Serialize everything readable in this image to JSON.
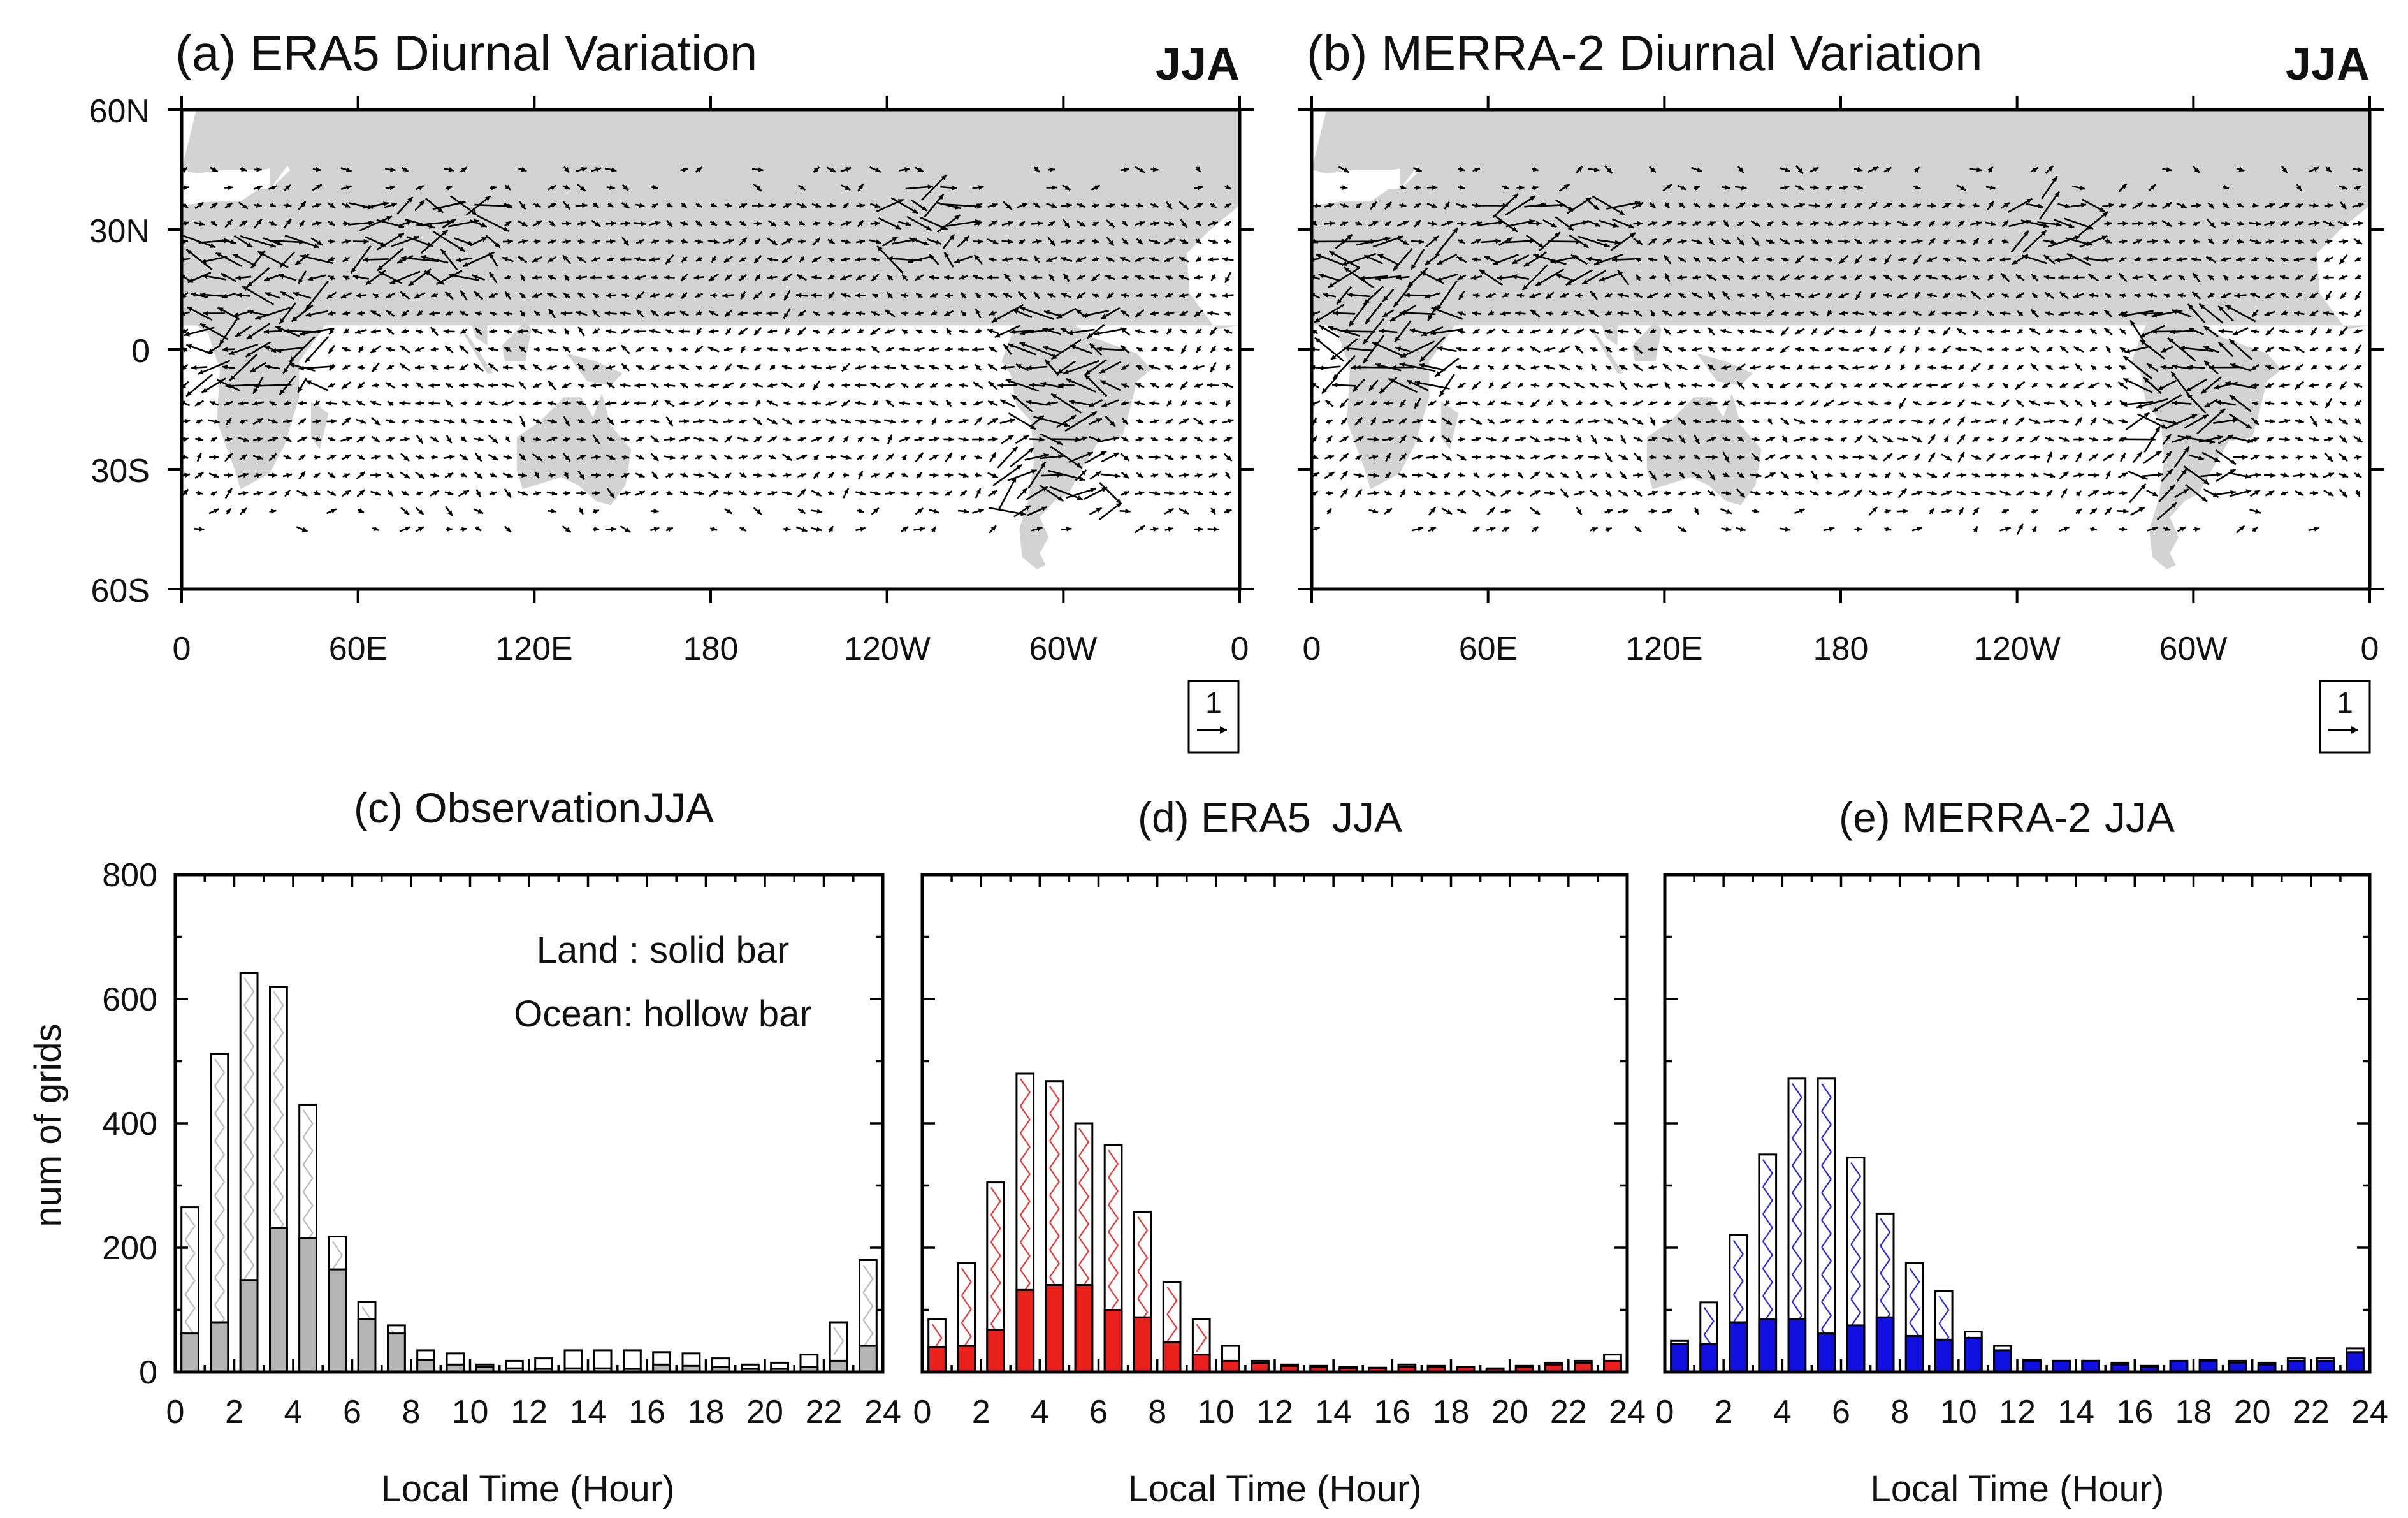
{
  "chart_data": [
    {
      "type": "map",
      "panel": "a",
      "title": "(a) ERA5 Diurnal Variation",
      "season": "JJA",
      "lat_ticks": [
        "60N",
        "30N",
        "0",
        "30S",
        "60S"
      ],
      "lon_ticks": [
        "0",
        "60E",
        "120E",
        "180",
        "120W",
        "60W",
        "0"
      ],
      "ref_vector": "1",
      "land_color": "#d3d3d3"
    },
    {
      "type": "map",
      "panel": "b",
      "title": "(b) MERRA-2 Diurnal Variation",
      "season": "JJA",
      "lat_ticks": [
        "60N",
        "30N",
        "0",
        "30S",
        "60S"
      ],
      "lon_ticks": [
        "0",
        "60E",
        "120E",
        "180",
        "120W",
        "60W",
        "0"
      ],
      "ref_vector": "1",
      "land_color": "#d3d3d3"
    },
    {
      "type": "bar",
      "panel": "c",
      "title": "(c) Observation",
      "season": "JJA",
      "xlabel": "Local Time (Hour)",
      "ylabel": "num of grids",
      "xlim": [
        0,
        24
      ],
      "ylim": [
        0,
        800
      ],
      "x_ticks": [
        "0",
        "2",
        "4",
        "6",
        "8",
        "10",
        "12",
        "14",
        "16",
        "18",
        "20",
        "22",
        "24"
      ],
      "y_ticks": [
        "0",
        "200",
        "400",
        "600",
        "800"
      ],
      "legend": [
        "Land : solid bar",
        "Ocean: hollow bar"
      ],
      "color": "#b4b4b4",
      "x": [
        0.5,
        1.5,
        2.5,
        3.5,
        4.5,
        5.5,
        6.5,
        7.5,
        8.5,
        9.5,
        10.5,
        11.5,
        12.5,
        13.5,
        14.5,
        15.5,
        16.5,
        17.5,
        18.5,
        19.5,
        20.5,
        21.5,
        22.5,
        23.5
      ],
      "series": [
        {
          "name": "Land",
          "values": [
            62,
            80,
            148,
            232,
            215,
            165,
            85,
            62,
            20,
            12,
            8,
            6,
            5,
            6,
            6,
            5,
            12,
            10,
            8,
            5,
            5,
            8,
            18,
            42
          ]
        },
        {
          "name": "Ocean",
          "values": [
            265,
            512,
            642,
            620,
            430,
            218,
            113,
            75,
            35,
            30,
            12,
            18,
            22,
            35,
            35,
            35,
            32,
            30,
            22,
            12,
            15,
            28,
            80,
            180
          ]
        }
      ]
    },
    {
      "type": "bar",
      "panel": "d",
      "title": "(d) ERA5",
      "season": "JJA",
      "xlabel": "Local Time (Hour)",
      "xlim": [
        0,
        24
      ],
      "ylim": [
        0,
        800
      ],
      "x_ticks": [
        "0",
        "2",
        "4",
        "6",
        "8",
        "10",
        "12",
        "14",
        "16",
        "18",
        "20",
        "22",
        "24"
      ],
      "color": "#e8211c",
      "x": [
        0.5,
        1.5,
        2.5,
        3.5,
        4.5,
        5.5,
        6.5,
        7.5,
        8.5,
        9.5,
        10.5,
        11.5,
        12.5,
        13.5,
        14.5,
        15.5,
        16.5,
        17.5,
        18.5,
        19.5,
        20.5,
        21.5,
        22.5,
        23.5
      ],
      "series": [
        {
          "name": "Land",
          "values": [
            40,
            42,
            68,
            132,
            140,
            140,
            100,
            88,
            48,
            28,
            18,
            14,
            10,
            8,
            6,
            6,
            8,
            8,
            8,
            5,
            8,
            12,
            14,
            18
          ]
        },
        {
          "name": "Ocean",
          "values": [
            85,
            175,
            305,
            480,
            468,
            400,
            365,
            258,
            145,
            85,
            42,
            18,
            12,
            10,
            8,
            7,
            12,
            10,
            8,
            6,
            10,
            15,
            18,
            28
          ]
        }
      ]
    },
    {
      "type": "bar",
      "panel": "e",
      "title": "(e) MERRA-2",
      "season": "JJA",
      "xlabel": "Local Time (Hour)",
      "xlim": [
        0,
        24
      ],
      "ylim": [
        0,
        800
      ],
      "x_ticks": [
        "0",
        "2",
        "4",
        "6",
        "8",
        "10",
        "12",
        "14",
        "16",
        "18",
        "20",
        "22",
        "24"
      ],
      "color": "#1010e0",
      "x": [
        0.5,
        1.5,
        2.5,
        3.5,
        4.5,
        5.5,
        6.5,
        7.5,
        8.5,
        9.5,
        10.5,
        11.5,
        12.5,
        13.5,
        14.5,
        15.5,
        16.5,
        17.5,
        18.5,
        19.5,
        20.5,
        21.5,
        22.5,
        23.5
      ],
      "series": [
        {
          "name": "Land",
          "values": [
            45,
            45,
            80,
            85,
            85,
            62,
            75,
            88,
            58,
            52,
            55,
            35,
            18,
            18,
            18,
            12,
            8,
            18,
            18,
            15,
            12,
            18,
            18,
            32
          ]
        },
        {
          "name": "Ocean",
          "values": [
            50,
            112,
            220,
            350,
            472,
            472,
            345,
            255,
            175,
            130,
            65,
            42,
            20,
            18,
            18,
            15,
            10,
            15,
            20,
            18,
            15,
            22,
            22,
            38
          ]
        }
      ]
    }
  ]
}
